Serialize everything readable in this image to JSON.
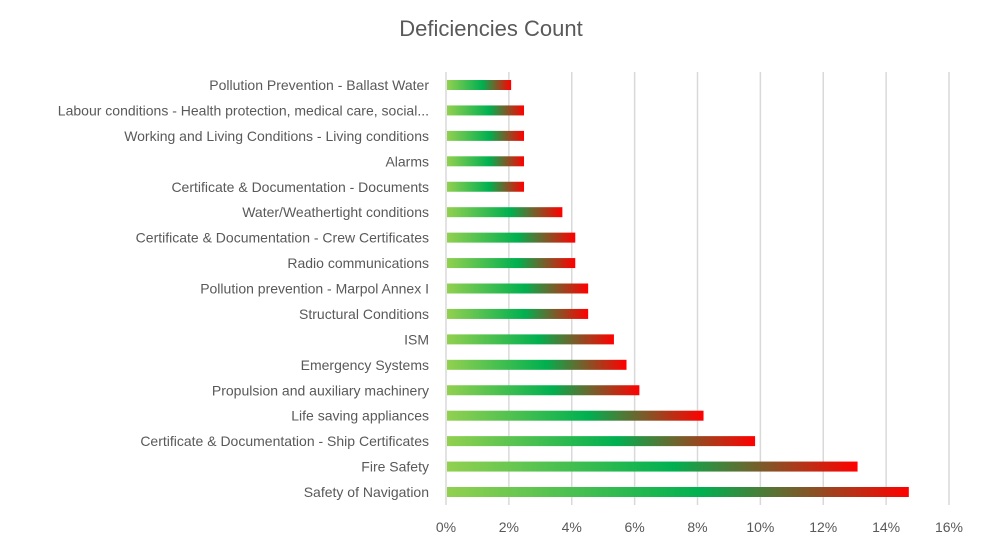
{
  "chart_data": {
    "type": "bar",
    "orientation": "horizontal",
    "title": "Deficiencies Count",
    "xlabel": "",
    "ylabel": "",
    "xlim": [
      0,
      16
    ],
    "x_tick_labels": [
      "0%",
      "2%",
      "4%",
      "6%",
      "8%",
      "10%",
      "12%",
      "14%",
      "16%"
    ],
    "x_ticks": [
      0,
      2,
      4,
      6,
      8,
      10,
      12,
      14,
      16
    ],
    "grid": "vertical",
    "legend": "none",
    "value_unit": "percent",
    "bar_gradient": [
      "#92D050",
      "#00B050",
      "#FF0000"
    ],
    "categories": [
      "Pollution Prevention - Ballast Water",
      "Labour conditions - Health protection, medical care, social...",
      "Working and Living Conditions - Living conditions",
      "Alarms",
      "Certificate & Documentation - Documents",
      "Water/Weathertight conditions",
      "Certificate & Documentation - Crew Certificates",
      "Radio communications",
      "Pollution prevention - Marpol Annex I",
      "Structural Conditions",
      "ISM",
      "Emergency Systems",
      "Propulsion and auxiliary machinery",
      "Life saving appliances",
      "Certificate & Documentation - Ship Certificates",
      "Fire Safety",
      "Safety of Navigation"
    ],
    "values": [
      2.04,
      2.45,
      2.45,
      2.45,
      2.45,
      3.67,
      4.08,
      4.08,
      4.49,
      4.49,
      5.31,
      5.71,
      6.12,
      8.16,
      9.8,
      13.06,
      14.69
    ]
  }
}
